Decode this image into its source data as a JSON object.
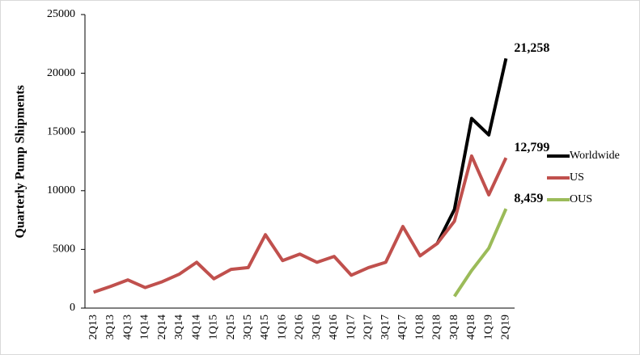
{
  "chart_data": {
    "type": "line",
    "ylabel": "Quarterly Pump Shipments",
    "categories": [
      "2Q13",
      "3Q13",
      "4Q13",
      "1Q14",
      "2Q14",
      "3Q14",
      "4Q14",
      "1Q15",
      "2Q15",
      "3Q15",
      "4Q15",
      "1Q16",
      "2Q16",
      "3Q16",
      "4Q16",
      "1Q17",
      "2Q17",
      "3Q17",
      "4Q17",
      "1Q18",
      "2Q18",
      "3Q18",
      "4Q18",
      "1Q19",
      "2Q19"
    ],
    "series": [
      {
        "name": "Worldwide",
        "color": "#000000",
        "values": [
          null,
          null,
          null,
          null,
          null,
          null,
          null,
          null,
          null,
          null,
          null,
          null,
          null,
          null,
          null,
          null,
          null,
          null,
          null,
          null,
          5500,
          8400,
          16150,
          14750,
          21258
        ],
        "value_labels": [
          null,
          null,
          null,
          null,
          null,
          null,
          null,
          null,
          null,
          null,
          null,
          null,
          null,
          null,
          null,
          null,
          null,
          null,
          null,
          null,
          null,
          null,
          null,
          null,
          "21,258"
        ]
      },
      {
        "name": "US",
        "color": "#c0504d",
        "values": [
          1350,
          1850,
          2400,
          1750,
          2250,
          2900,
          3900,
          2500,
          3300,
          3450,
          6250,
          4050,
          4600,
          3900,
          4400,
          2800,
          3450,
          3900,
          6950,
          4450,
          5500,
          7400,
          12950,
          9650,
          12799
        ],
        "value_labels": [
          null,
          null,
          null,
          null,
          null,
          null,
          null,
          null,
          null,
          null,
          null,
          null,
          null,
          null,
          null,
          null,
          null,
          null,
          null,
          null,
          null,
          null,
          null,
          null,
          "12,799"
        ]
      },
      {
        "name": "OUS",
        "color": "#9bbb59",
        "values": [
          null,
          null,
          null,
          null,
          null,
          null,
          null,
          null,
          null,
          null,
          null,
          null,
          null,
          null,
          null,
          null,
          null,
          null,
          null,
          null,
          null,
          1000,
          3200,
          5100,
          8459
        ],
        "value_labels": [
          null,
          null,
          null,
          null,
          null,
          null,
          null,
          null,
          null,
          null,
          null,
          null,
          null,
          null,
          null,
          null,
          null,
          null,
          null,
          null,
          null,
          null,
          null,
          null,
          "8,459"
        ]
      }
    ],
    "ylim": [
      0,
      25000
    ],
    "yticks": [
      0,
      5000,
      10000,
      15000,
      20000,
      25000
    ],
    "grid": false,
    "legend": "right"
  }
}
